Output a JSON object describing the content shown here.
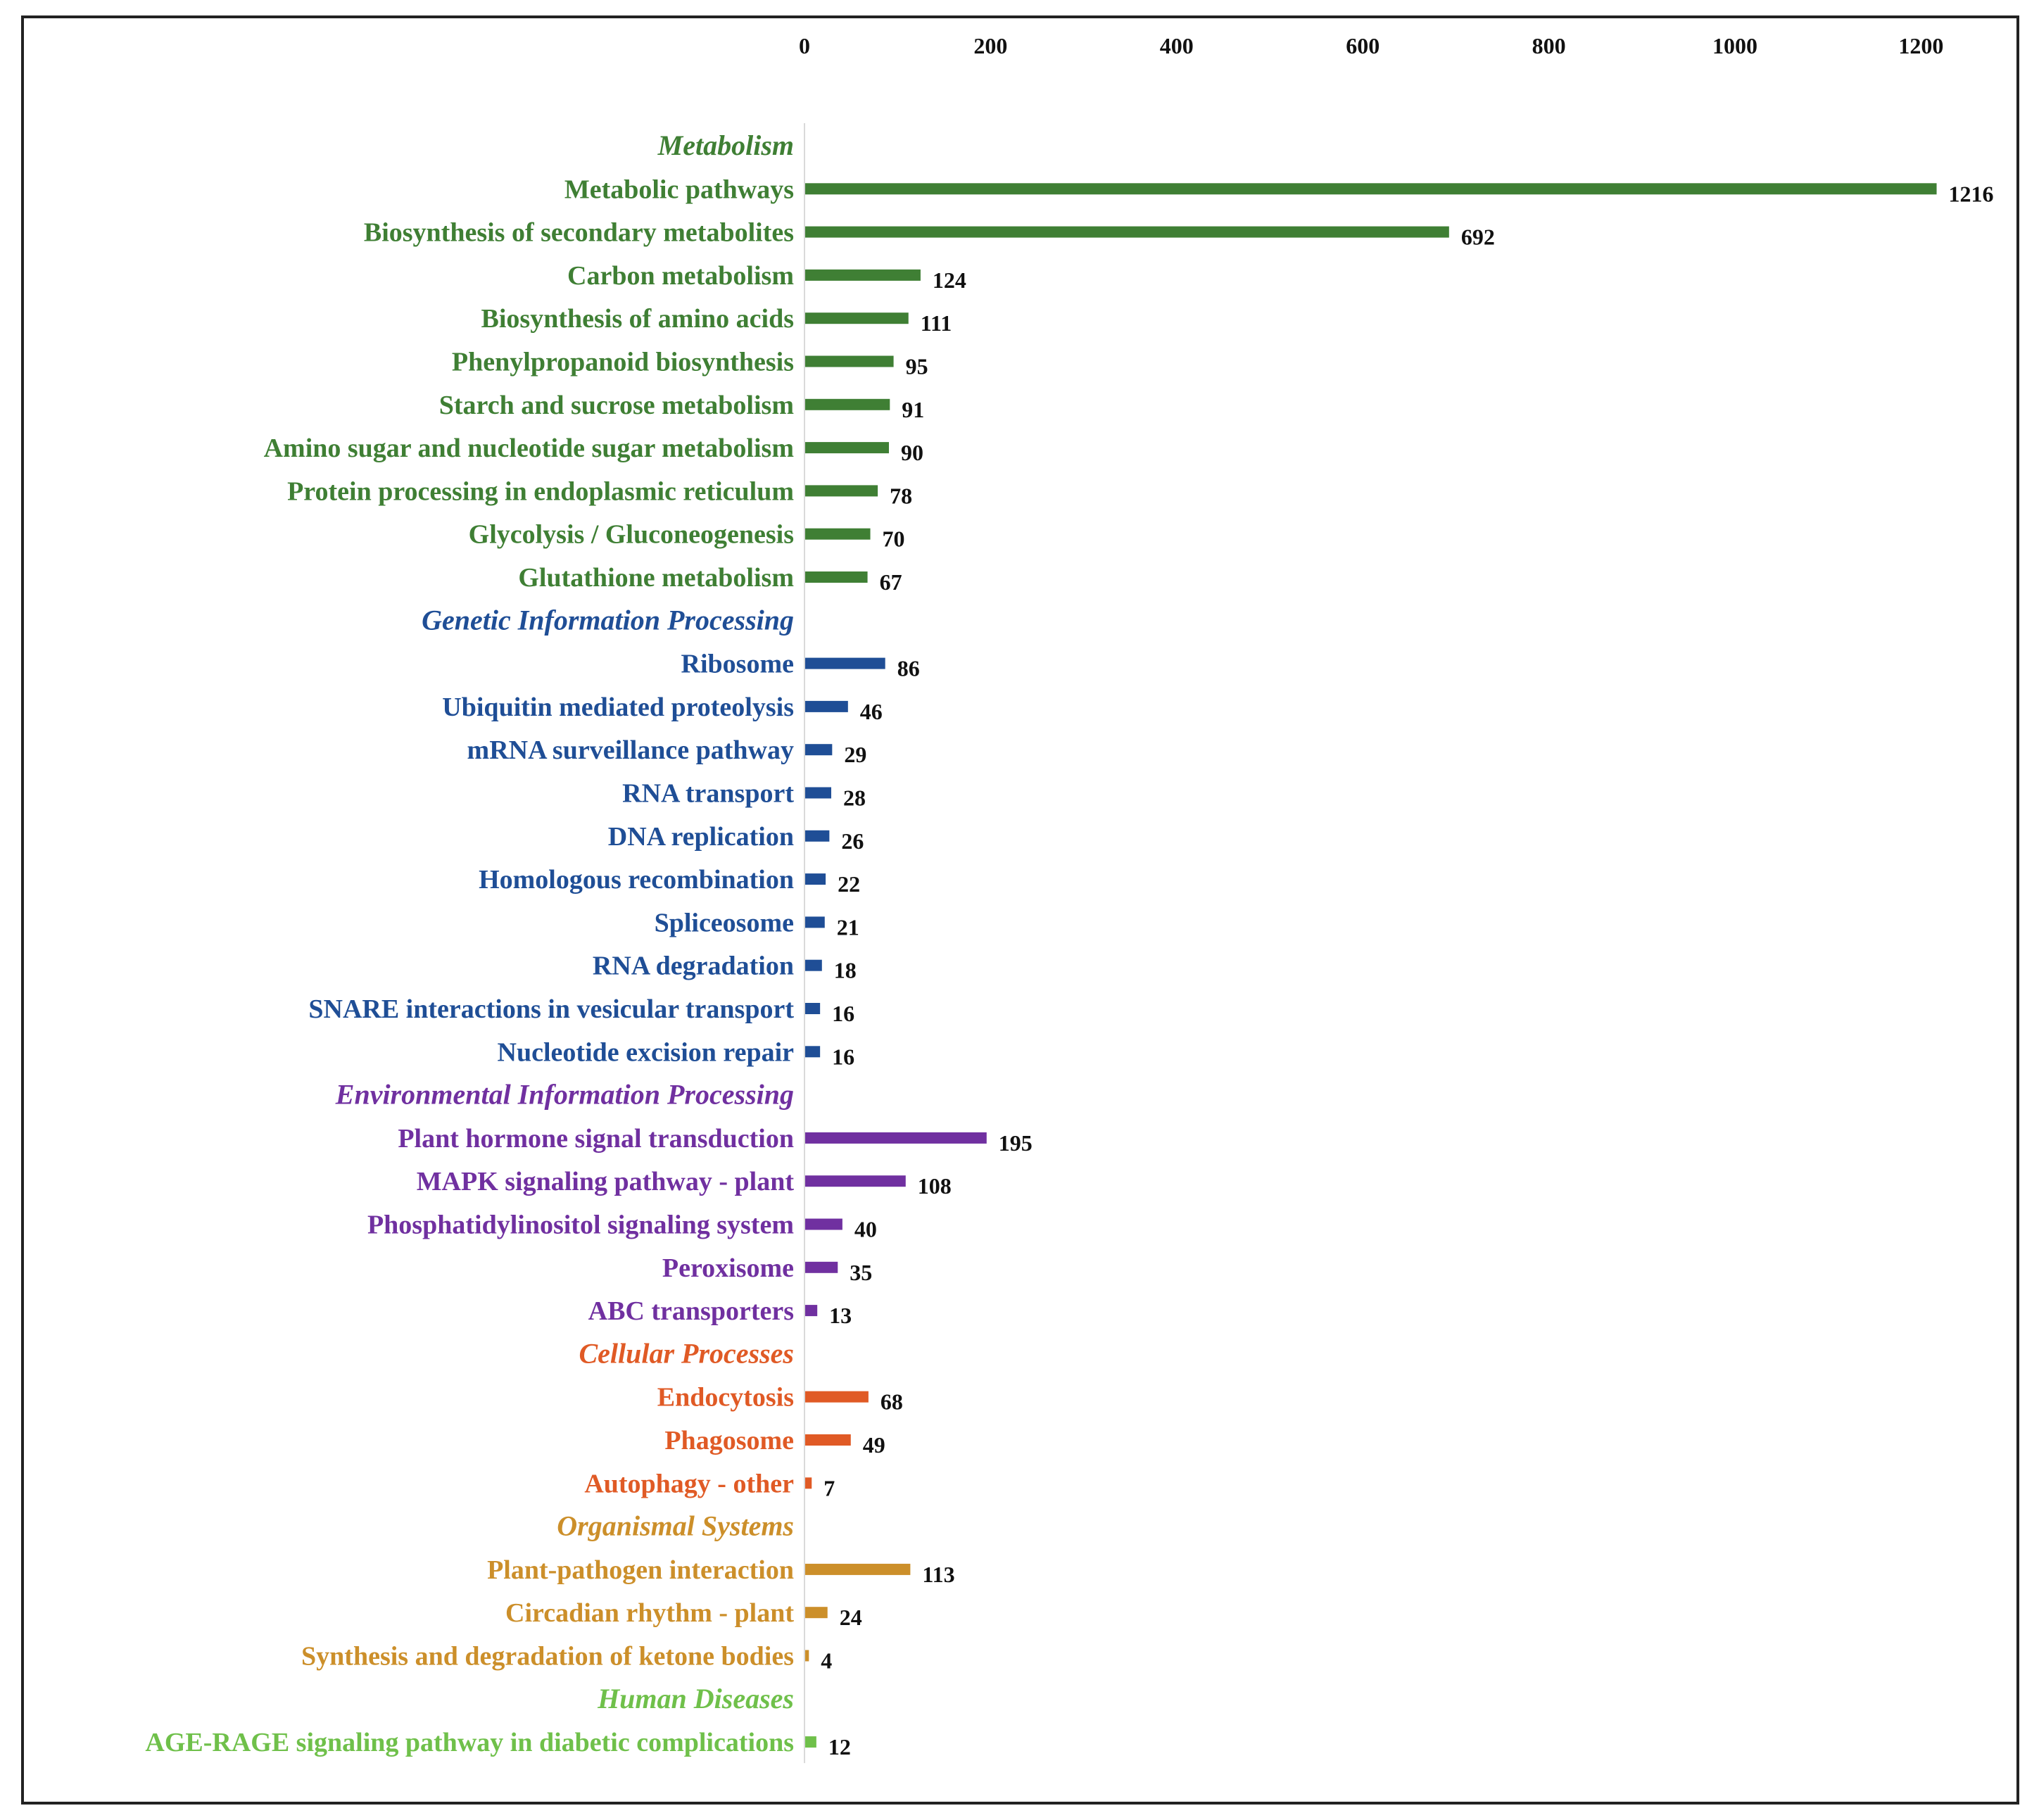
{
  "chart_data": {
    "type": "bar",
    "orientation": "horizontal",
    "title": "",
    "xlabel": "",
    "ylabel": "",
    "xlim": [
      0,
      1200
    ],
    "x_ticks": [
      "0",
      "200",
      "400",
      "600",
      "800",
      "1000",
      "1200"
    ],
    "x_axis_position": "top",
    "grid": false,
    "groups": [
      {
        "name": "Metabolism",
        "color": "#3f7f34",
        "items": [
          {
            "label": "Metabolic pathways",
            "value": 1216
          },
          {
            "label": "Biosynthesis of secondary metabolites",
            "value": 692
          },
          {
            "label": "Carbon metabolism",
            "value": 124
          },
          {
            "label": "Biosynthesis of amino acids",
            "value": 111
          },
          {
            "label": "Phenylpropanoid biosynthesis",
            "value": 95
          },
          {
            "label": "Starch and sucrose metabolism",
            "value": 91
          },
          {
            "label": "Amino sugar and nucleotide sugar metabolism",
            "value": 90
          },
          {
            "label": "Protein processing in endoplasmic reticulum",
            "value": 78
          },
          {
            "label": "Glycolysis / Gluconeogenesis",
            "value": 70
          },
          {
            "label": "Glutathione metabolism",
            "value": 67
          }
        ]
      },
      {
        "name": "Genetic Information Processing",
        "color": "#1f4e96",
        "items": [
          {
            "label": "Ribosome",
            "value": 86
          },
          {
            "label": "Ubiquitin mediated proteolysis",
            "value": 46
          },
          {
            "label": "mRNA surveillance pathway",
            "value": 29
          },
          {
            "label": "RNA transport",
            "value": 28
          },
          {
            "label": "DNA replication",
            "value": 26
          },
          {
            "label": "Homologous recombination",
            "value": 22
          },
          {
            "label": "Spliceosome",
            "value": 21
          },
          {
            "label": "RNA degradation",
            "value": 18
          },
          {
            "label": "SNARE interactions in vesicular transport",
            "value": 16
          },
          {
            "label": "Nucleotide excision repair",
            "value": 16
          }
        ]
      },
      {
        "name": "Environmental Information Processing",
        "color": "#7030a0",
        "items": [
          {
            "label": "Plant hormone signal transduction",
            "value": 195
          },
          {
            "label": "MAPK signaling pathway - plant",
            "value": 108
          },
          {
            "label": "Phosphatidylinositol signaling system",
            "value": 40
          },
          {
            "label": "Peroxisome",
            "value": 35
          },
          {
            "label": "ABC transporters",
            "value": 13
          }
        ]
      },
      {
        "name": "Cellular Processes",
        "color": "#e05a25",
        "items": [
          {
            "label": "Endocytosis",
            "value": 68
          },
          {
            "label": "Phagosome",
            "value": 49
          },
          {
            "label": "Autophagy - other",
            "value": 7
          }
        ]
      },
      {
        "name": "Organismal Systems",
        "color": "#cc8f2a",
        "items": [
          {
            "label": "Plant-pathogen interaction",
            "value": 113
          },
          {
            "label": "Circadian rhythm - plant",
            "value": 24
          },
          {
            "label": "Synthesis and degradation of ketone bodies",
            "value": 4
          }
        ]
      },
      {
        "name": "Human Diseases",
        "color": "#6fc04a",
        "items": [
          {
            "label": "AGE-RAGE signaling pathway in diabetic complications",
            "value": 12
          }
        ]
      }
    ]
  }
}
